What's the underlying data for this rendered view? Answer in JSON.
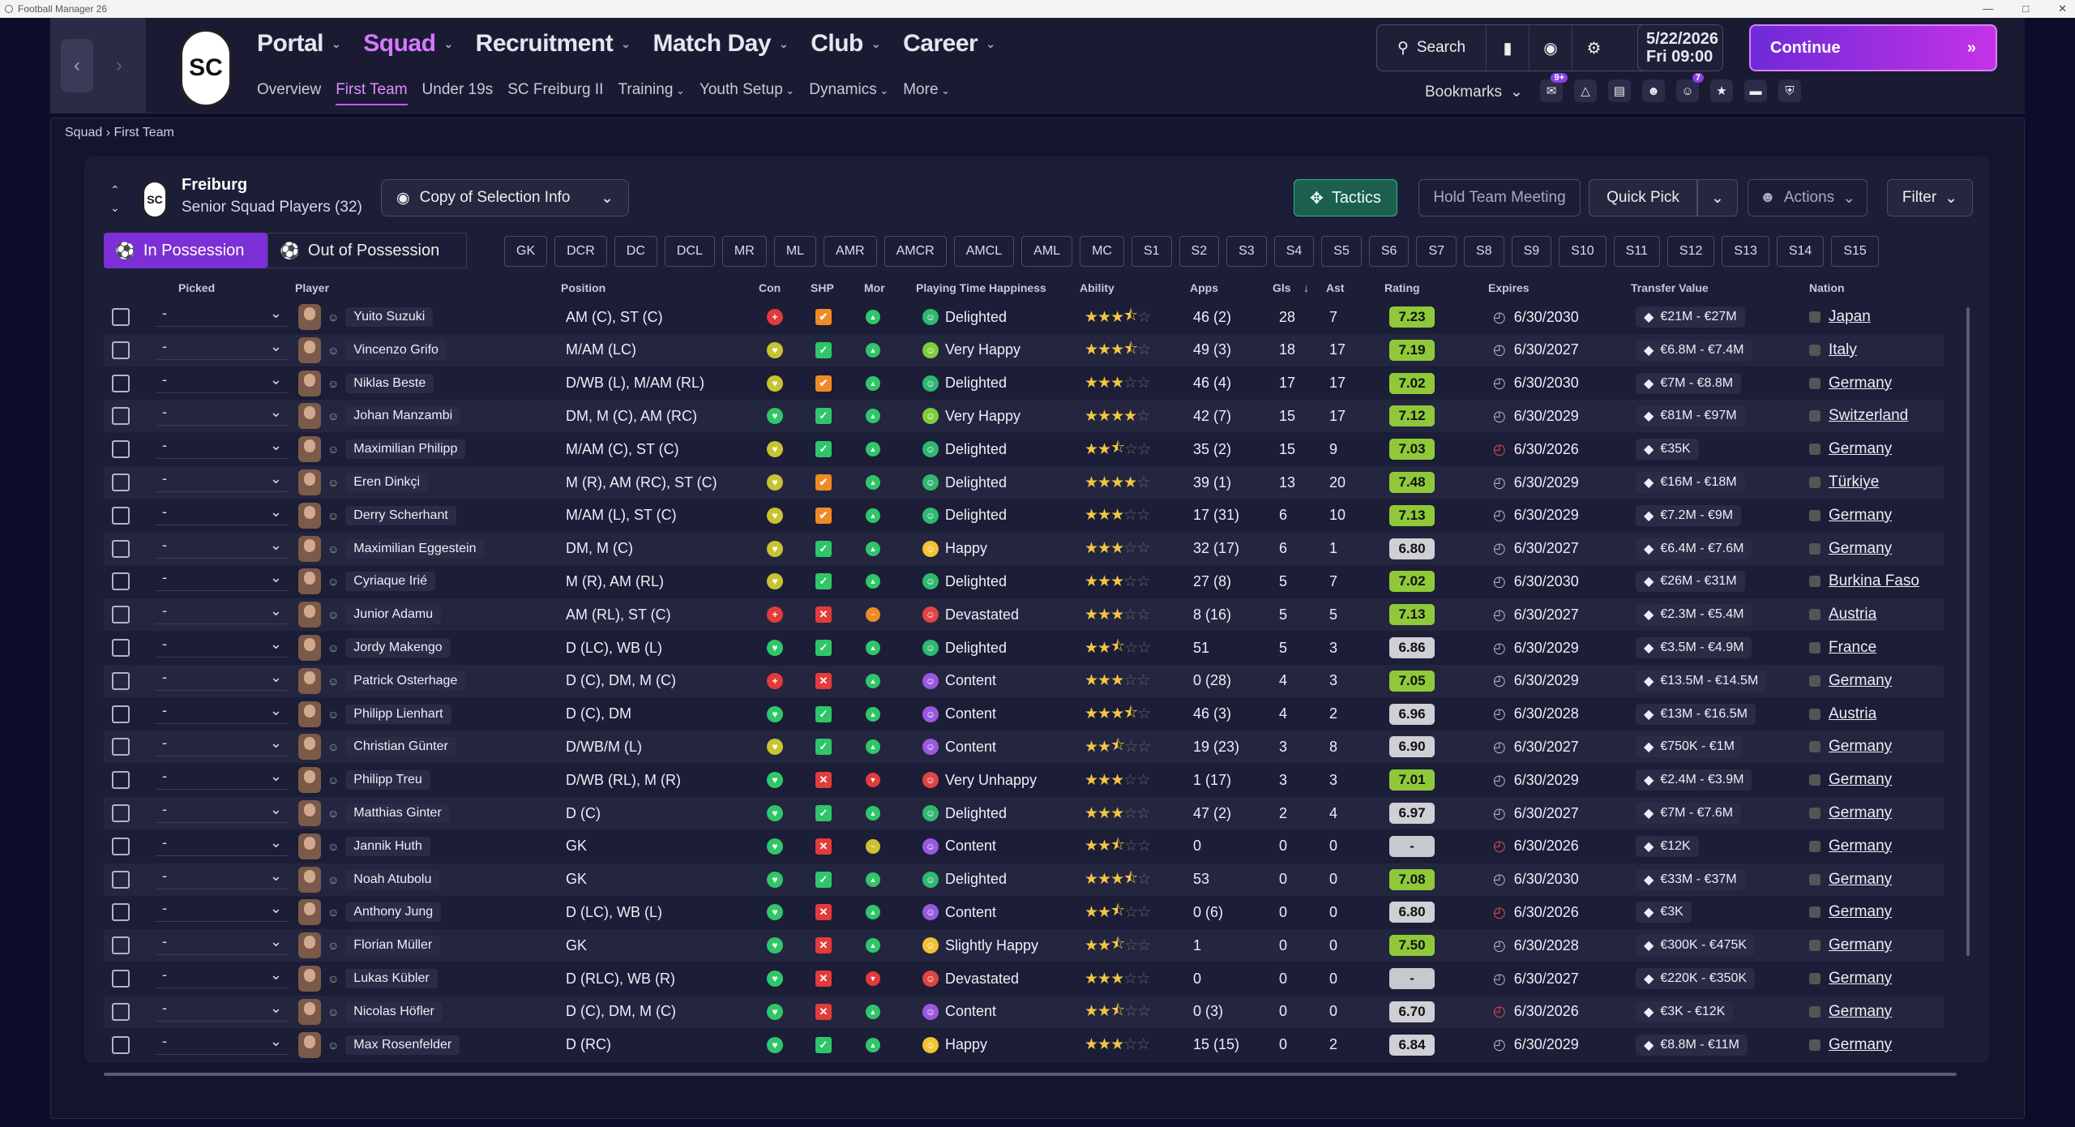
{
  "window": {
    "title": "Football Manager 26"
  },
  "nav": {
    "main": [
      {
        "label": "Portal",
        "active": false
      },
      {
        "label": "Squad",
        "active": true
      },
      {
        "label": "Recruitment",
        "active": false
      },
      {
        "label": "Match Day",
        "active": false
      },
      {
        "label": "Club",
        "active": false
      },
      {
        "label": "Career",
        "active": false
      }
    ],
    "sub": [
      "Overview",
      "First Team",
      "Under 19s",
      "SC Freiburg II",
      "Training",
      "Youth Setup",
      "Dynamics",
      "More"
    ]
  },
  "toolbar": {
    "search_label": "Search",
    "date": "5/22/2026",
    "day_time": "Fri  09:00",
    "continue_label": "Continue",
    "bookmarks_label": "Bookmarks",
    "badge_1": "9+",
    "badge_2": "7"
  },
  "breadcrumb": {
    "parent": "Squad",
    "current": "First Team"
  },
  "club": {
    "name": "Freiburg",
    "subtitle": "Senior Squad Players (32)"
  },
  "controls": {
    "selection_info": "Copy of Selection Info",
    "tactics": "Tactics",
    "hold_meeting": "Hold Team Meeting",
    "quick_pick": "Quick Pick",
    "actions": "Actions",
    "filter": "Filter",
    "in_possession": "In Possession",
    "out_possession": "Out of Possession"
  },
  "positions": [
    "GK",
    "DCR",
    "DC",
    "DCL",
    "MR",
    "ML",
    "AMR",
    "AMCR",
    "AMCL",
    "AML",
    "MC",
    "S1",
    "S2",
    "S3",
    "S4",
    "S5",
    "S6",
    "S7",
    "S8",
    "S9",
    "S10",
    "S11",
    "S12",
    "S13",
    "S14",
    "S15"
  ],
  "columns": {
    "picked": "Picked",
    "player": "Player",
    "position": "Position",
    "con": "Con",
    "shp": "SHP",
    "mor": "Mor",
    "pth": "Playing Time Happiness",
    "ability": "Ability",
    "apps": "Apps",
    "gls": "Gls",
    "ast": "Ast",
    "rating": "Rating",
    "expires": "Expires",
    "value": "Transfer Value",
    "nation": "Nation"
  },
  "colors": {
    "accent": "#c55af0",
    "continue": "#8a2be2",
    "tactics": "#1d5f4e"
  },
  "players": [
    {
      "picked": "-",
      "name": "Yuito Suzuki",
      "pos": "AM (C), ST (C)",
      "con": "red",
      "shp": "orange",
      "mor": "green",
      "happy": "Delighted",
      "stars": 3.5,
      "apps": "46 (2)",
      "gls": "28",
      "ast": "7",
      "rating": "7.23",
      "expires": "6/30/2030",
      "value": "€21M - €27M",
      "nation": "Japan"
    },
    {
      "picked": "-",
      "name": "Vincenzo Grifo",
      "pos": "M/AM (LC)",
      "con": "yellow",
      "shp": "green",
      "mor": "green",
      "happy": "Very Happy",
      "stars": 3.5,
      "apps": "49 (3)",
      "gls": "18",
      "ast": "17",
      "rating": "7.19",
      "expires": "6/30/2027",
      "value": "€6.8M - €7.4M",
      "nation": "Italy"
    },
    {
      "picked": "-",
      "name": "Niklas Beste",
      "pos": "D/WB (L), M/AM (RL)",
      "con": "yellow",
      "shp": "orange",
      "mor": "green",
      "happy": "Delighted",
      "stars": 3,
      "apps": "46 (4)",
      "gls": "17",
      "ast": "17",
      "rating": "7.02",
      "expires": "6/30/2030",
      "value": "€7M - €8.8M",
      "nation": "Germany"
    },
    {
      "picked": "-",
      "name": "Johan Manzambi",
      "pos": "DM, M (C), AM (RC)",
      "con": "green",
      "shp": "green",
      "mor": "green",
      "happy": "Very Happy",
      "stars": 4,
      "apps": "42 (7)",
      "gls": "15",
      "ast": "17",
      "rating": "7.12",
      "expires": "6/30/2029",
      "value": "€81M - €97M",
      "nation": "Switzerland"
    },
    {
      "picked": "-",
      "name": "Maximilian Philipp",
      "pos": "M/AM (C), ST (C)",
      "con": "yellow",
      "shp": "green",
      "mor": "green",
      "happy": "Delighted",
      "stars": 2.5,
      "apps": "35 (2)",
      "gls": "15",
      "ast": "9",
      "rating": "7.03",
      "expires": "6/30/2026",
      "value": "€35K",
      "nation": "Germany"
    },
    {
      "picked": "-",
      "name": "Eren Dinkçi",
      "pos": "M (R), AM (RC), ST (C)",
      "con": "yellow",
      "shp": "orange",
      "mor": "green",
      "happy": "Delighted",
      "stars": 4,
      "apps": "39 (1)",
      "gls": "13",
      "ast": "20",
      "rating": "7.48",
      "expires": "6/30/2029",
      "value": "€16M - €18M",
      "nation": "Türkiye"
    },
    {
      "picked": "-",
      "name": "Derry Scherhant",
      "pos": "M/AM (L), ST (C)",
      "con": "yellow",
      "shp": "orange",
      "mor": "green",
      "happy": "Delighted",
      "stars": 3,
      "apps": "17 (31)",
      "gls": "6",
      "ast": "10",
      "rating": "7.13",
      "expires": "6/30/2029",
      "value": "€7.2M - €9M",
      "nation": "Germany"
    },
    {
      "picked": "-",
      "name": "Maximilian Eggestein",
      "pos": "DM, M (C)",
      "con": "yellow",
      "shp": "green",
      "mor": "green",
      "happy": "Happy",
      "stars": 3,
      "apps": "32 (17)",
      "gls": "6",
      "ast": "1",
      "rating": "6.80",
      "expires": "6/30/2027",
      "value": "€6.4M - €7.6M",
      "nation": "Germany"
    },
    {
      "picked": "-",
      "name": "Cyriaque Irié",
      "pos": "M (R), AM (RL)",
      "con": "yellow",
      "shp": "green",
      "mor": "green",
      "happy": "Delighted",
      "stars": 3,
      "apps": "27 (8)",
      "gls": "5",
      "ast": "7",
      "rating": "7.02",
      "expires": "6/30/2030",
      "value": "€26M - €31M",
      "nation": "Burkina Faso"
    },
    {
      "picked": "-",
      "name": "Junior Adamu",
      "pos": "AM (RL), ST (C)",
      "con": "red",
      "shp": "red",
      "mor": "orange",
      "happy": "Devastated",
      "stars": 3,
      "apps": "8 (16)",
      "gls": "5",
      "ast": "5",
      "rating": "7.13",
      "expires": "6/30/2027",
      "value": "€2.3M - €5.4M",
      "nation": "Austria"
    },
    {
      "picked": "-",
      "name": "Jordy Makengo",
      "pos": "D (LC), WB (L)",
      "con": "green",
      "shp": "green",
      "mor": "green",
      "happy": "Delighted",
      "stars": 2.5,
      "apps": "51",
      "gls": "5",
      "ast": "3",
      "rating": "6.86",
      "expires": "6/30/2029",
      "value": "€3.5M - €4.9M",
      "nation": "France"
    },
    {
      "picked": "-",
      "name": "Patrick Osterhage",
      "pos": "D (C), DM, M (C)",
      "con": "red",
      "shp": "red",
      "mor": "green",
      "happy": "Content",
      "stars": 3,
      "apps": "0 (28)",
      "gls": "4",
      "ast": "3",
      "rating": "7.05",
      "expires": "6/30/2029",
      "value": "€13.5M - €14.5M",
      "nation": "Germany"
    },
    {
      "picked": "-",
      "name": "Philipp Lienhart",
      "pos": "D (C), DM",
      "con": "green",
      "shp": "green",
      "mor": "green",
      "happy": "Content",
      "stars": 3.5,
      "apps": "46 (3)",
      "gls": "4",
      "ast": "2",
      "rating": "6.96",
      "expires": "6/30/2028",
      "value": "€13M - €16.5M",
      "nation": "Austria"
    },
    {
      "picked": "-",
      "name": "Christian Günter",
      "pos": "D/WB/M (L)",
      "con": "yellow",
      "shp": "green",
      "mor": "green",
      "happy": "Content",
      "stars": 2.5,
      "apps": "19 (23)",
      "gls": "3",
      "ast": "8",
      "rating": "6.90",
      "expires": "6/30/2027",
      "value": "€750K - €1M",
      "nation": "Germany"
    },
    {
      "picked": "-",
      "name": "Philipp Treu",
      "pos": "D/WB (RL), M (R)",
      "con": "green",
      "shp": "red",
      "mor": "red",
      "happy": "Very Unhappy",
      "stars": 3,
      "apps": "1 (17)",
      "gls": "3",
      "ast": "3",
      "rating": "7.01",
      "expires": "6/30/2029",
      "value": "€2.4M - €3.9M",
      "nation": "Germany"
    },
    {
      "picked": "-",
      "name": "Matthias Ginter",
      "pos": "D (C)",
      "con": "green",
      "shp": "green",
      "mor": "green",
      "happy": "Delighted",
      "stars": 3,
      "apps": "47 (2)",
      "gls": "2",
      "ast": "4",
      "rating": "6.97",
      "expires": "6/30/2027",
      "value": "€7M - €7.6M",
      "nation": "Germany"
    },
    {
      "picked": "-",
      "name": "Jannik Huth",
      "pos": "GK",
      "con": "green",
      "shp": "red",
      "mor": "yellow",
      "happy": "Content",
      "stars": 2.5,
      "apps": "0",
      "gls": "0",
      "ast": "0",
      "rating": "-",
      "expires": "6/30/2026",
      "value": "€12K",
      "nation": "Germany"
    },
    {
      "picked": "-",
      "name": "Noah Atubolu",
      "pos": "GK",
      "con": "green",
      "shp": "green",
      "mor": "green",
      "happy": "Delighted",
      "stars": 3.5,
      "apps": "53",
      "gls": "0",
      "ast": "0",
      "rating": "7.08",
      "expires": "6/30/2030",
      "value": "€33M - €37M",
      "nation": "Germany"
    },
    {
      "picked": "-",
      "name": "Anthony Jung",
      "pos": "D (LC), WB (L)",
      "con": "green",
      "shp": "red",
      "mor": "green",
      "happy": "Content",
      "stars": 2.5,
      "apps": "0 (6)",
      "gls": "0",
      "ast": "0",
      "rating": "6.80",
      "expires": "6/30/2026",
      "value": "€3K",
      "nation": "Germany"
    },
    {
      "picked": "-",
      "name": "Florian Müller",
      "pos": "GK",
      "con": "green",
      "shp": "red",
      "mor": "green",
      "happy": "Slightly Happy",
      "stars": 2.5,
      "apps": "1",
      "gls": "0",
      "ast": "0",
      "rating": "7.50",
      "expires": "6/30/2028",
      "value": "€300K - €475K",
      "nation": "Germany"
    },
    {
      "picked": "-",
      "name": "Lukas Kübler",
      "pos": "D (RLC), WB (R)",
      "con": "green",
      "shp": "red",
      "mor": "red",
      "happy": "Devastated",
      "stars": 3,
      "apps": "0",
      "gls": "0",
      "ast": "0",
      "rating": "-",
      "expires": "6/30/2027",
      "value": "€220K - €350K",
      "nation": "Germany"
    },
    {
      "picked": "-",
      "name": "Nicolas Höfler",
      "pos": "D (C), DM, M (C)",
      "con": "green",
      "shp": "red",
      "mor": "green",
      "happy": "Content",
      "stars": 2.5,
      "apps": "0 (3)",
      "gls": "0",
      "ast": "0",
      "rating": "6.70",
      "expires": "6/30/2026",
      "value": "€3K - €12K",
      "nation": "Germany"
    },
    {
      "picked": "-",
      "name": "Max Rosenfelder",
      "pos": "D (RC)",
      "con": "green",
      "shp": "green",
      "mor": "green",
      "happy": "Happy",
      "stars": 3,
      "apps": "15 (15)",
      "gls": "0",
      "ast": "2",
      "rating": "6.84",
      "expires": "6/30/2029",
      "value": "€8.8M - €11M",
      "nation": "Germany"
    }
  ]
}
